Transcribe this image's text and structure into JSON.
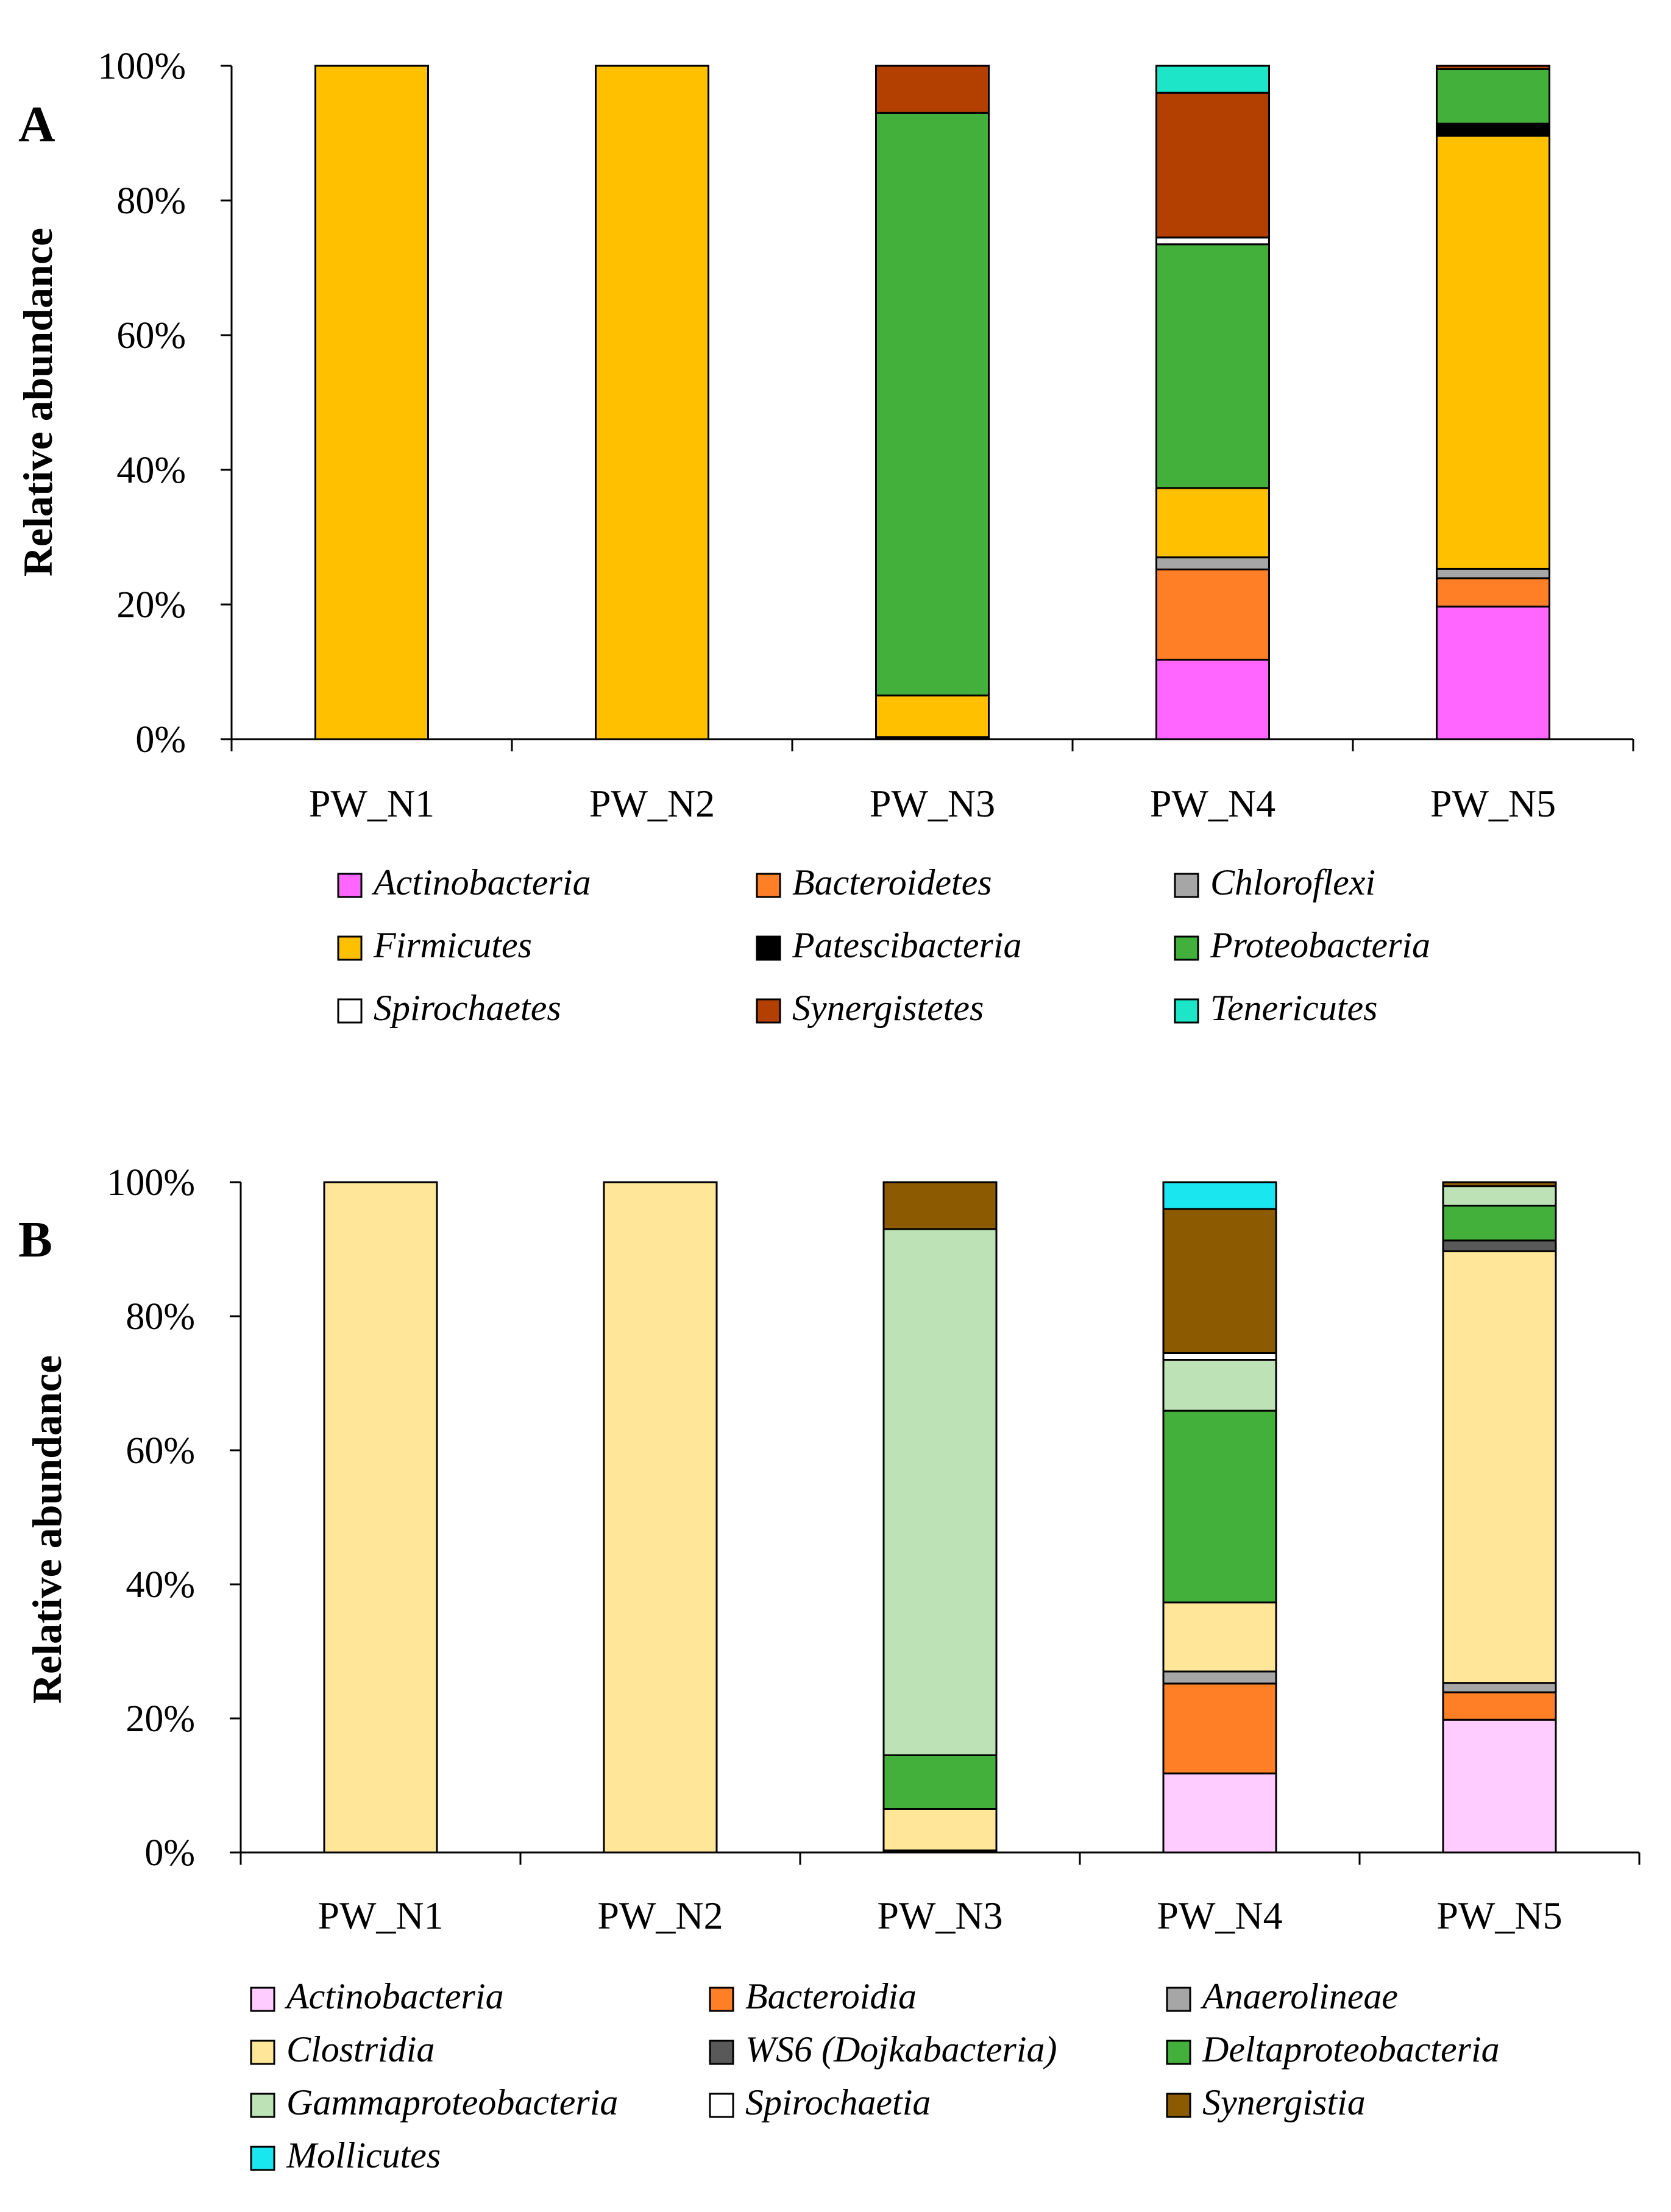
{
  "chart_data": [
    {
      "type": "bar",
      "stacked": true,
      "panel_label": "A",
      "ylabel": "Relative abundance",
      "ylim": [
        0,
        100
      ],
      "y_ticks": [
        "0%",
        "20%",
        "40%",
        "60%",
        "80%",
        "100%"
      ],
      "categories": [
        "PW_N1",
        "PW_N2",
        "PW_N3",
        "PW_N4",
        "PW_N5"
      ],
      "legend_position": "bottom",
      "series": [
        {
          "name": "Actinobacteria",
          "color": "#ff66ff",
          "values": [
            0,
            0,
            0.1,
            11.8,
            19.7
          ]
        },
        {
          "name": "Bacteroidetes",
          "color": "#ff7f27",
          "values": [
            0,
            0,
            0.1,
            13.4,
            4.2
          ]
        },
        {
          "name": "Chloroflexi",
          "color": "#a6a6a6",
          "values": [
            0,
            0,
            0.1,
            1.8,
            1.4
          ]
        },
        {
          "name": "Firmicutes",
          "color": "#ffc000",
          "values": [
            100,
            100,
            6.2,
            10.3,
            64.3
          ]
        },
        {
          "name": "Patescibacteria",
          "color": "#000000",
          "values": [
            0,
            0,
            0,
            0,
            1.8
          ]
        },
        {
          "name": "Proteobacteria",
          "color": "#44b03c",
          "values": [
            0,
            0,
            86.5,
            36.2,
            8.1
          ]
        },
        {
          "name": "Spirochaetes",
          "color": "#ffffff",
          "values": [
            0,
            0,
            0,
            1.0,
            0
          ]
        },
        {
          "name": "Synergistetes",
          "color": "#b34000",
          "values": [
            0,
            0,
            7.0,
            21.5,
            0.5
          ]
        },
        {
          "name": "Tenericutes",
          "color": "#1de6c8",
          "values": [
            0,
            0,
            0,
            4.0,
            0
          ]
        }
      ]
    },
    {
      "type": "bar",
      "stacked": true,
      "panel_label": "B",
      "ylabel": "Relative abundance",
      "ylim": [
        0,
        100
      ],
      "y_ticks": [
        "0%",
        "20%",
        "40%",
        "60%",
        "80%",
        "100%"
      ],
      "categories": [
        "PW_N1",
        "PW_N2",
        "PW_N3",
        "PW_N4",
        "PW_N5"
      ],
      "legend_position": "bottom",
      "series": [
        {
          "name": "Actinobacteria",
          "color": "#ffccff",
          "values": [
            0,
            0,
            0.1,
            11.8,
            19.8
          ]
        },
        {
          "name": "Bacteroidia",
          "color": "#ff7f27",
          "values": [
            0,
            0,
            0.1,
            13.4,
            4.1
          ]
        },
        {
          "name": "Anaerolineae",
          "color": "#a6a6a6",
          "values": [
            0,
            0,
            0.1,
            1.8,
            1.4
          ]
        },
        {
          "name": "Clostridia",
          "color": "#ffe699",
          "values": [
            100,
            100,
            6.2,
            10.3,
            64.4
          ]
        },
        {
          "name": "WS6 (Dojkabacteria)",
          "color": "#595959",
          "values": [
            0,
            0,
            0,
            0,
            1.6
          ]
        },
        {
          "name": "Deltaproteobacteria",
          "color": "#44b03c",
          "values": [
            0,
            0,
            8.0,
            28.6,
            5.2
          ]
        },
        {
          "name": "Gammaproteobacteria",
          "color": "#bce2b5",
          "values": [
            0,
            0,
            78.5,
            7.6,
            2.9
          ]
        },
        {
          "name": "Spirochaetia",
          "color": "#ffffff",
          "values": [
            0,
            0,
            0,
            1.0,
            0
          ]
        },
        {
          "name": "Synergistia",
          "color": "#8c5a00",
          "values": [
            0,
            0,
            7.0,
            21.5,
            0.6
          ]
        },
        {
          "name": "Mollicutes",
          "color": "#1ae6f0",
          "values": [
            0,
            0,
            0,
            4.0,
            0
          ]
        }
      ]
    }
  ]
}
